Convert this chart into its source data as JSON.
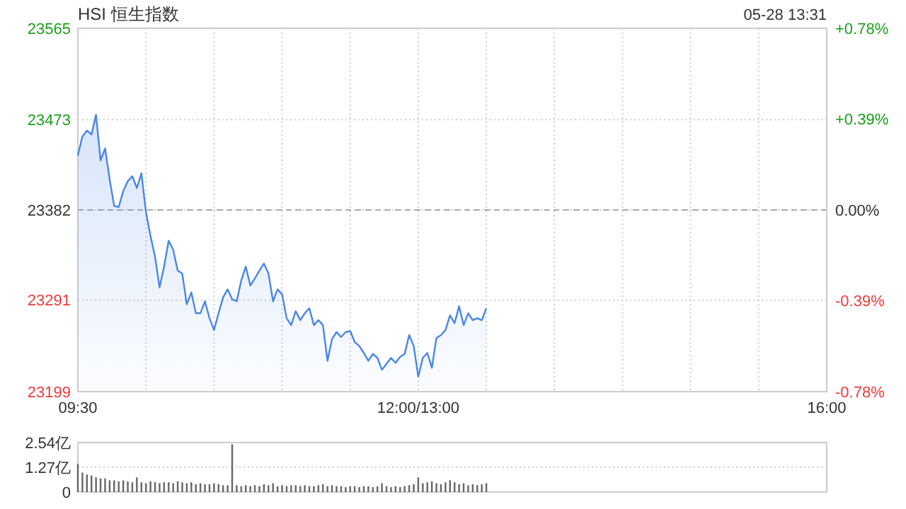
{
  "chart_data": [
    {
      "type": "area",
      "title": "HSI 恒生指数",
      "annotations": [
        "05-28 13:31"
      ],
      "categories": [
        "09:30",
        null,
        null,
        null,
        null,
        null,
        null,
        null,
        null,
        null,
        null,
        null,
        null,
        null,
        null,
        null,
        null,
        null,
        null,
        null,
        null,
        null,
        null,
        null,
        null,
        null,
        null,
        null,
        null,
        null,
        null,
        null,
        null,
        null,
        null,
        null,
        null,
        null,
        null,
        null,
        null,
        null,
        null,
        null,
        null,
        null,
        null,
        null,
        null,
        null,
        null,
        null,
        null,
        null,
        null,
        null,
        null,
        null,
        null,
        null,
        null,
        null,
        null,
        null,
        null,
        null,
        null,
        null,
        null,
        null,
        null,
        null,
        null,
        null,
        null,
        "12:00/13:00",
        null,
        null,
        null,
        null,
        null,
        null,
        null,
        null,
        null,
        null,
        null,
        null,
        null,
        null,
        null,
        null,
        null,
        null,
        null,
        null,
        null,
        null,
        null,
        null,
        null,
        null,
        null,
        null,
        null,
        null,
        null,
        null,
        null,
        null,
        null,
        null,
        null,
        null,
        null,
        null,
        null,
        null,
        null,
        null,
        null,
        null,
        null,
        null,
        null,
        null,
        null,
        null,
        null,
        null,
        null,
        null,
        null,
        null,
        null,
        null,
        null,
        null,
        null,
        null,
        null,
        null,
        null,
        null,
        null,
        null,
        null,
        null,
        null,
        null,
        null,
        null,
        null,
        null,
        null,
        null,
        null,
        null,
        null,
        null,
        null,
        null,
        null,
        null,
        null,
        "16:00"
      ],
      "ylim": [
        23199,
        23565
      ],
      "yticks": [
        23199,
        23291,
        23382,
        23473,
        23565
      ],
      "y2lim": [
        -0.78,
        0.78
      ],
      "y2ticks": [
        {
          "value": -0.78,
          "label": "-0.78%"
        },
        {
          "value": -0.39,
          "label": "-0.39%"
        },
        {
          "value": 0,
          "label": "0.00%"
        },
        {
          "value": 0.39,
          "label": "+0.39%"
        },
        {
          "value": 0.78,
          "label": "+0.78%"
        }
      ],
      "grid": true,
      "ref_lines": [
        {
          "axis": "y",
          "value": 23382,
          "color": "#aaaaaa",
          "line_style": "dashed"
        }
      ],
      "series": [
        {
          "color": "#4a86e8",
          "values": [
            23437,
            23456,
            23462,
            23458,
            23478,
            23432,
            23444,
            23413,
            23386,
            23385,
            23401,
            23411,
            23416,
            23404,
            23419,
            23380,
            23356,
            23335,
            23304,
            23325,
            23351,
            23342,
            23321,
            23318,
            23287,
            23299,
            23278,
            23278,
            23290,
            23273,
            23261,
            23278,
            23294,
            23302,
            23292,
            23290,
            23311,
            23325,
            23306,
            23313,
            23321,
            23328,
            23318,
            23290,
            23302,
            23297,
            23273,
            23266,
            23280,
            23271,
            23278,
            23283,
            23266,
            23271,
            23266,
            23230,
            23252,
            23259,
            23254,
            23259,
            23260,
            23249,
            23245,
            23238,
            23230,
            23237,
            23233,
            23221,
            23227,
            23233,
            23228,
            23234,
            23237,
            23256,
            23245,
            23214,
            23233,
            23238,
            23223,
            23253,
            23256,
            23261,
            23276,
            23268,
            23285,
            23266,
            23278,
            23271,
            23273,
            23271,
            23283,
            null,
            null,
            null,
            null,
            null,
            null,
            null,
            null,
            null,
            null,
            null,
            null,
            null,
            null,
            null,
            null,
            null,
            null,
            null,
            null,
            null,
            null,
            null,
            null,
            null,
            null,
            null,
            null,
            null,
            null,
            null,
            null,
            null,
            null,
            null,
            null,
            null,
            null,
            null,
            null,
            null,
            null,
            null,
            null,
            null,
            null,
            null,
            null,
            null,
            null,
            null,
            null,
            null,
            null,
            null,
            null,
            null,
            null,
            null,
            null,
            null,
            null,
            null,
            null,
            null,
            null,
            null,
            null,
            null,
            null,
            null,
            null,
            null,
            null,
            null
          ]
        }
      ]
    },
    {
      "type": "bar",
      "categories": [
        null,
        null,
        null,
        null,
        null,
        null,
        null,
        null,
        null,
        null,
        null,
        null,
        null,
        null,
        null,
        null,
        null,
        null,
        null,
        null,
        null,
        null,
        null,
        null,
        null,
        null,
        null,
        null,
        null,
        null,
        null,
        null,
        null,
        null,
        null,
        null,
        null,
        null,
        null,
        null,
        null,
        null,
        null,
        null,
        null,
        null,
        null,
        null,
        null,
        null,
        null,
        null,
        null,
        null,
        null,
        null,
        null,
        null,
        null,
        null,
        null,
        null,
        null,
        null,
        null,
        null,
        null,
        null,
        null,
        null,
        null,
        null,
        null,
        null,
        null,
        null,
        null,
        null,
        null,
        null,
        null,
        null,
        null,
        null,
        null,
        null,
        null,
        null,
        null,
        null,
        null,
        null,
        null,
        null,
        null,
        null,
        null,
        null,
        null,
        null,
        null,
        null,
        null,
        null,
        null,
        null,
        null,
        null,
        null,
        null,
        null,
        null,
        null,
        null,
        null,
        null,
        null,
        null,
        null,
        null,
        null,
        null,
        null,
        null,
        null,
        null,
        null,
        null,
        null,
        null,
        null,
        null,
        null,
        null,
        null,
        null,
        null,
        null,
        null,
        null,
        null,
        null,
        null,
        null,
        null,
        null,
        null,
        null,
        null,
        null,
        null,
        null,
        null,
        null,
        null,
        null,
        null,
        null,
        null,
        null,
        null,
        null,
        null,
        null,
        null,
        null
      ],
      "ylim": [
        0,
        2.54
      ],
      "yticks": [
        0,
        {
          "value": 1.27,
          "label": "1.27亿"
        },
        {
          "value": 2.54,
          "label": "2.54亿"
        }
      ],
      "grid": "y",
      "tick_labels": "y",
      "series": [
        {
          "color": "#666666",
          "values": [
            1.45,
            1.0,
            0.9,
            0.85,
            0.75,
            0.7,
            0.7,
            0.6,
            0.6,
            0.55,
            0.6,
            0.55,
            0.5,
            0.75,
            0.5,
            0.45,
            0.55,
            0.5,
            0.45,
            0.5,
            0.5,
            0.45,
            0.55,
            0.5,
            0.45,
            0.5,
            0.4,
            0.45,
            0.4,
            0.4,
            0.45,
            0.4,
            0.35,
            0.35,
            2.45,
            0.35,
            0.3,
            0.35,
            0.3,
            0.35,
            0.3,
            0.4,
            0.35,
            0.45,
            0.3,
            0.35,
            0.3,
            0.35,
            0.35,
            0.3,
            0.35,
            0.3,
            0.3,
            0.35,
            0.4,
            0.3,
            0.35,
            0.3,
            0.3,
            0.25,
            0.3,
            0.3,
            0.25,
            0.3,
            0.3,
            0.25,
            0.3,
            0.45,
            0.3,
            0.25,
            0.3,
            0.25,
            0.3,
            0.35,
            0.4,
            0.75,
            0.45,
            0.5,
            0.55,
            0.45,
            0.4,
            0.5,
            0.6,
            0.5,
            0.4,
            0.45,
            0.35,
            0.4,
            0.35,
            0.4,
            0.45,
            null,
            null,
            null,
            null,
            null,
            null,
            null,
            null,
            null,
            null,
            null,
            null,
            null,
            null,
            null,
            null,
            null,
            null,
            null,
            null,
            null,
            null,
            null,
            null,
            null,
            null,
            null,
            null,
            null,
            null,
            null,
            null,
            null,
            null,
            null,
            null,
            null,
            null,
            null,
            null,
            null,
            null,
            null,
            null,
            null,
            null,
            null,
            null,
            null,
            null,
            null,
            null,
            null,
            null,
            null,
            null,
            null,
            null,
            null,
            null,
            null,
            null,
            null,
            null,
            null,
            null,
            null,
            null,
            null,
            null,
            null,
            null,
            null,
            null,
            null
          ]
        }
      ]
    }
  ]
}
